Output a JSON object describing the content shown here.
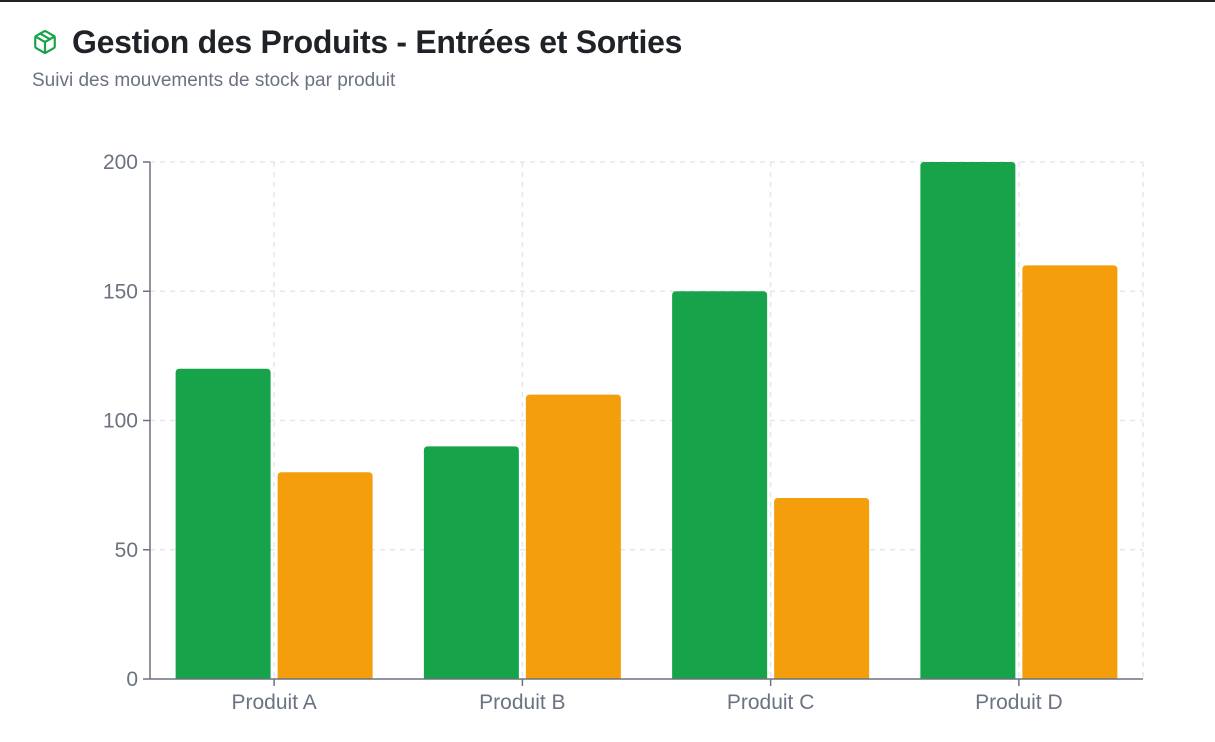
{
  "header": {
    "title": "Gestion des Produits - Entrées et Sorties",
    "subtitle": "Suivi des mouvements de stock par produit",
    "icon": "package-icon",
    "icon_color": "#16a34a"
  },
  "colors": {
    "series_1": "#16a34a",
    "series_2": "#f59e0b",
    "grid": "#e5e7eb",
    "axis": "#6b7280",
    "text": "#1f2328"
  },
  "chart_data": {
    "type": "bar",
    "categories": [
      "Produit A",
      "Produit B",
      "Produit C",
      "Produit D"
    ],
    "series": [
      {
        "values": [
          120,
          90,
          150,
          200
        ],
        "color": "#16a34a"
      },
      {
        "values": [
          80,
          110,
          70,
          160
        ],
        "color": "#f59e0b"
      }
    ],
    "ylim": [
      0,
      200
    ],
    "yticks": [
      0,
      50,
      100,
      150,
      200
    ],
    "grid": true,
    "legend": "none"
  }
}
